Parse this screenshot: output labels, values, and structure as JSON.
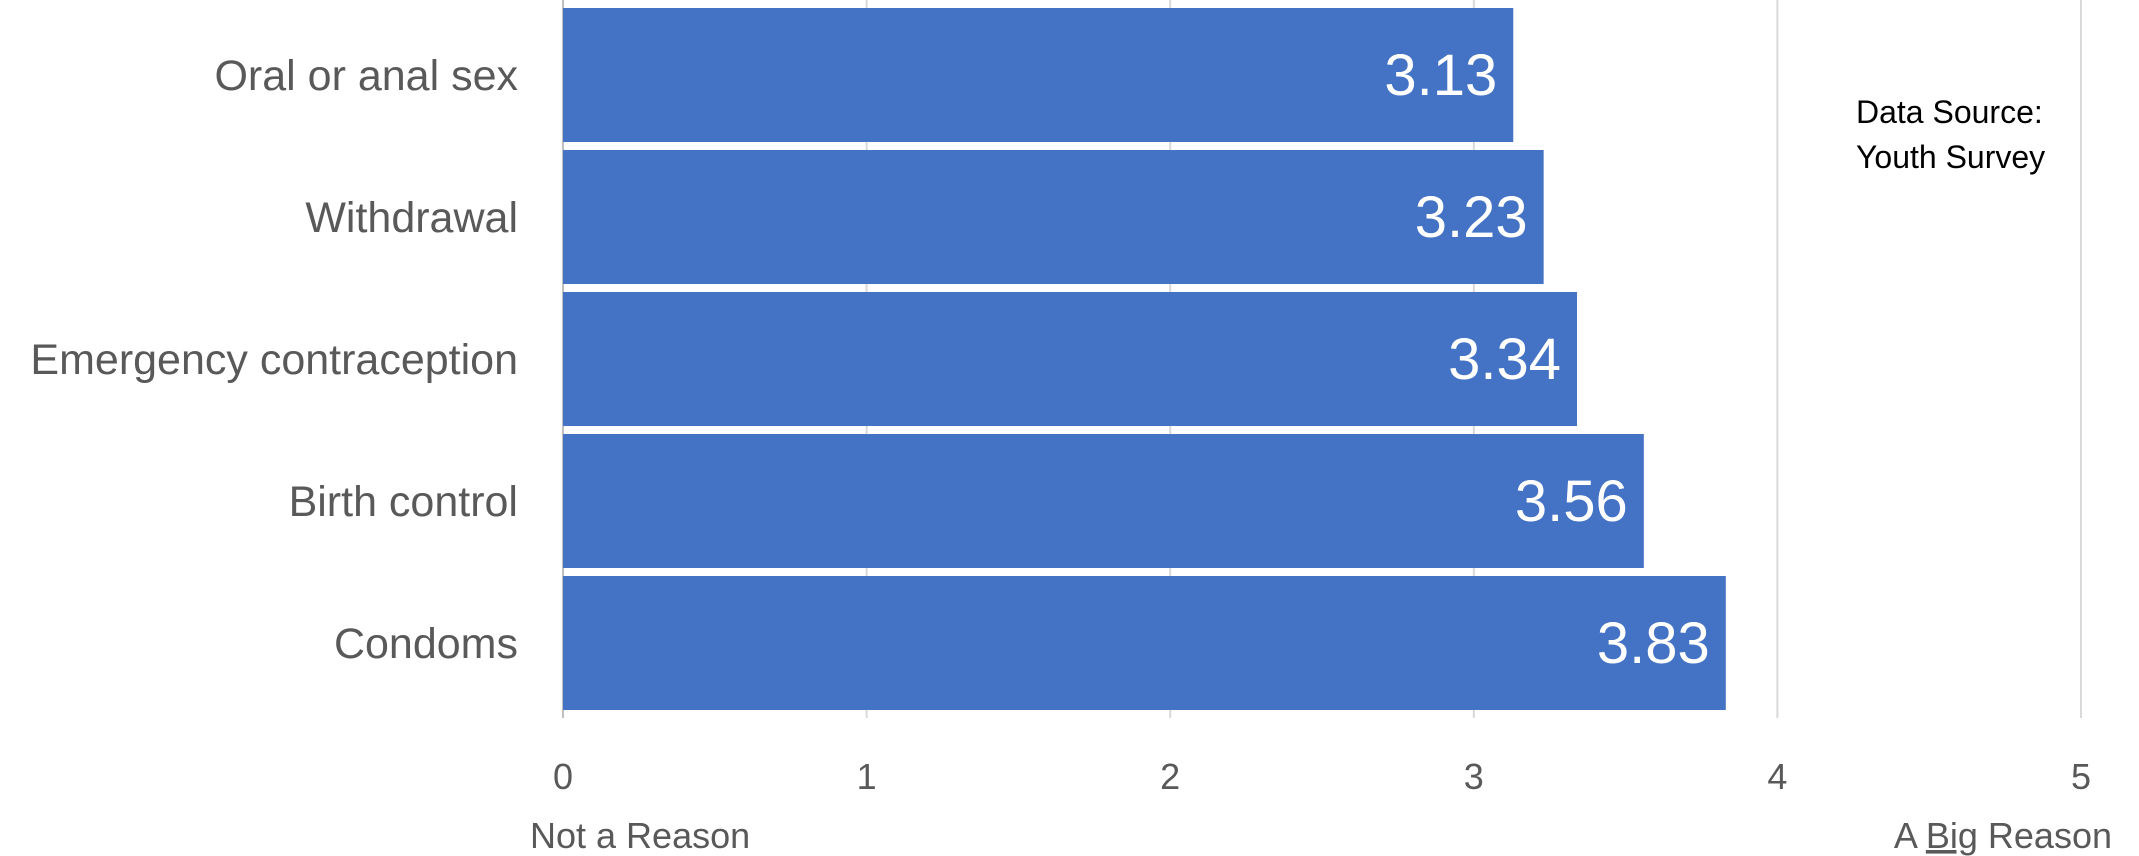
{
  "chart_data": {
    "type": "bar",
    "orientation": "horizontal",
    "categories": [
      "Oral or anal sex",
      "Withdrawal",
      "Emergency contraception",
      "Birth control",
      "Condoms"
    ],
    "values": [
      3.13,
      3.23,
      3.34,
      3.56,
      3.83
    ],
    "data_labels": [
      "3.13",
      "3.23",
      "3.34",
      "3.56",
      "3.83"
    ],
    "xlim": [
      0,
      5
    ],
    "x_ticks": [
      0,
      1,
      2,
      3,
      4,
      5
    ],
    "x_tick_labels": [
      "0",
      "1",
      "2",
      "3",
      "4",
      "5"
    ],
    "scale_low_label": "Not a Reason",
    "scale_high_label_prefix": "A ",
    "scale_high_label_emphasis": "Big",
    "scale_high_label_suffix": " Reason",
    "source_line1": "Data Source:",
    "source_line2": "Youth Survey",
    "grid": true,
    "legend": "none",
    "bar_color": "#4472C4",
    "grid_color": "#D9D9D9",
    "text_color": "#595959"
  }
}
